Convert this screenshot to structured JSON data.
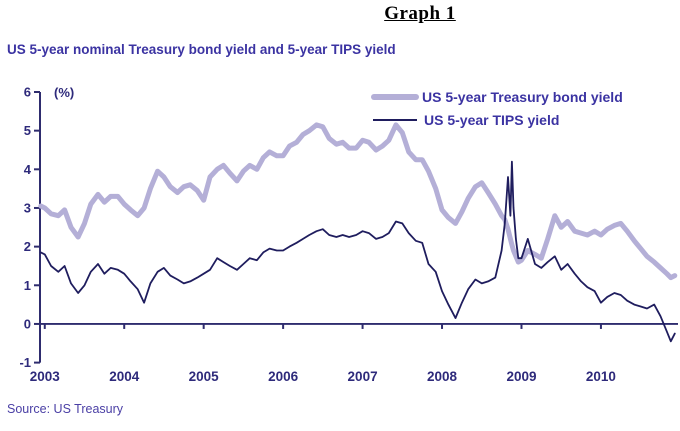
{
  "page": {
    "title": "Graph 1",
    "subtitle": "US 5-year nominal Treasury bond yield and 5-year TIPS yield",
    "source": "Source: US Treasury"
  },
  "colors": {
    "treasury_line": "#b4afd7",
    "tips_line": "#1f1d5e",
    "axis": "#2e2c6e",
    "tick_text": "#2e2a7b",
    "heading_text": "#3b33a2",
    "source_text": "#4a3fa5",
    "title_text": "#000000"
  },
  "chart_data": {
    "type": "line",
    "title": "US 5-year nominal Treasury bond yield and 5-year TIPS yield",
    "unit_label": "(%)",
    "xlim": [
      2002.94,
      2010.97
    ],
    "ylim": [
      -1,
      6
    ],
    "x_ticks": [
      2003,
      2004,
      2005,
      2006,
      2007,
      2008,
      2009,
      2010
    ],
    "y_ticks": [
      -1,
      0,
      1,
      2,
      3,
      4,
      5,
      6
    ],
    "grid": false,
    "legend_position": "top-right",
    "x": [
      2002.95,
      2003.0,
      2003.08,
      2003.17,
      2003.25,
      2003.33,
      2003.42,
      2003.5,
      2003.58,
      2003.67,
      2003.75,
      2003.83,
      2003.92,
      2004.0,
      2004.08,
      2004.17,
      2004.25,
      2004.33,
      2004.42,
      2004.5,
      2004.58,
      2004.67,
      2004.75,
      2004.83,
      2004.92,
      2005.0,
      2005.08,
      2005.17,
      2005.25,
      2005.33,
      2005.42,
      2005.5,
      2005.58,
      2005.67,
      2005.75,
      2005.83,
      2005.92,
      2006.0,
      2006.08,
      2006.17,
      2006.25,
      2006.33,
      2006.42,
      2006.5,
      2006.58,
      2006.67,
      2006.75,
      2006.83,
      2006.92,
      2007.0,
      2007.08,
      2007.17,
      2007.25,
      2007.33,
      2007.42,
      2007.5,
      2007.58,
      2007.67,
      2007.75,
      2007.83,
      2007.92,
      2008.0,
      2008.08,
      2008.17,
      2008.25,
      2008.33,
      2008.42,
      2008.5,
      2008.58,
      2008.67,
      2008.75,
      2008.79,
      2008.83,
      2008.86,
      2008.88,
      2008.9,
      2008.93,
      2008.96,
      2009.0,
      2009.08,
      2009.17,
      2009.25,
      2009.33,
      2009.42,
      2009.5,
      2009.58,
      2009.67,
      2009.75,
      2009.83,
      2009.92,
      2010.0,
      2010.08,
      2010.17,
      2010.25,
      2010.33,
      2010.42,
      2010.5,
      2010.58,
      2010.67,
      2010.75,
      2010.83,
      2010.88,
      2010.93
    ],
    "series": [
      {
        "name": "US 5-year Treasury bond yield",
        "color": "#b4afd7",
        "width": 5,
        "values": [
          3.05,
          3.0,
          2.85,
          2.8,
          2.95,
          2.5,
          2.25,
          2.6,
          3.1,
          3.35,
          3.15,
          3.3,
          3.3,
          3.1,
          2.95,
          2.8,
          3.0,
          3.5,
          3.95,
          3.8,
          3.55,
          3.4,
          3.55,
          3.6,
          3.45,
          3.2,
          3.8,
          4.0,
          4.1,
          3.9,
          3.7,
          3.95,
          4.1,
          4.0,
          4.3,
          4.45,
          4.35,
          4.35,
          4.6,
          4.7,
          4.9,
          5.0,
          5.15,
          5.1,
          4.8,
          4.65,
          4.7,
          4.55,
          4.55,
          4.75,
          4.7,
          4.5,
          4.6,
          4.75,
          5.15,
          4.95,
          4.45,
          4.25,
          4.25,
          3.95,
          3.5,
          2.95,
          2.75,
          2.6,
          2.9,
          3.25,
          3.55,
          3.65,
          3.4,
          3.1,
          2.8,
          2.7,
          2.45,
          2.2,
          2.05,
          1.9,
          1.75,
          1.6,
          1.65,
          1.9,
          1.8,
          1.7,
          2.2,
          2.8,
          2.5,
          2.65,
          2.4,
          2.35,
          2.3,
          2.4,
          2.3,
          2.45,
          2.55,
          2.6,
          2.4,
          2.15,
          1.95,
          1.75,
          1.6,
          1.45,
          1.3,
          1.2,
          1.25
        ]
      },
      {
        "name": "US 5-year TIPS yield",
        "color": "#1f1d5e",
        "width": 1.8,
        "values": [
          1.85,
          1.8,
          1.5,
          1.35,
          1.5,
          1.05,
          0.8,
          1.0,
          1.35,
          1.55,
          1.3,
          1.45,
          1.4,
          1.3,
          1.1,
          0.9,
          0.55,
          1.05,
          1.35,
          1.45,
          1.25,
          1.15,
          1.05,
          1.1,
          1.2,
          1.3,
          1.4,
          1.7,
          1.6,
          1.5,
          1.4,
          1.55,
          1.7,
          1.65,
          1.85,
          1.95,
          1.9,
          1.9,
          2.0,
          2.1,
          2.2,
          2.3,
          2.4,
          2.45,
          2.3,
          2.25,
          2.3,
          2.25,
          2.3,
          2.4,
          2.35,
          2.2,
          2.25,
          2.35,
          2.65,
          2.6,
          2.35,
          2.15,
          2.1,
          1.55,
          1.35,
          0.85,
          0.5,
          0.15,
          0.55,
          0.9,
          1.15,
          1.05,
          1.1,
          1.2,
          1.9,
          2.6,
          3.8,
          2.8,
          4.2,
          3.0,
          2.2,
          1.7,
          1.7,
          2.2,
          1.55,
          1.45,
          1.6,
          1.75,
          1.4,
          1.55,
          1.3,
          1.1,
          0.95,
          0.85,
          0.55,
          0.7,
          0.8,
          0.75,
          0.6,
          0.5,
          0.45,
          0.4,
          0.5,
          0.2,
          -0.2,
          -0.45,
          -0.25
        ]
      }
    ]
  }
}
